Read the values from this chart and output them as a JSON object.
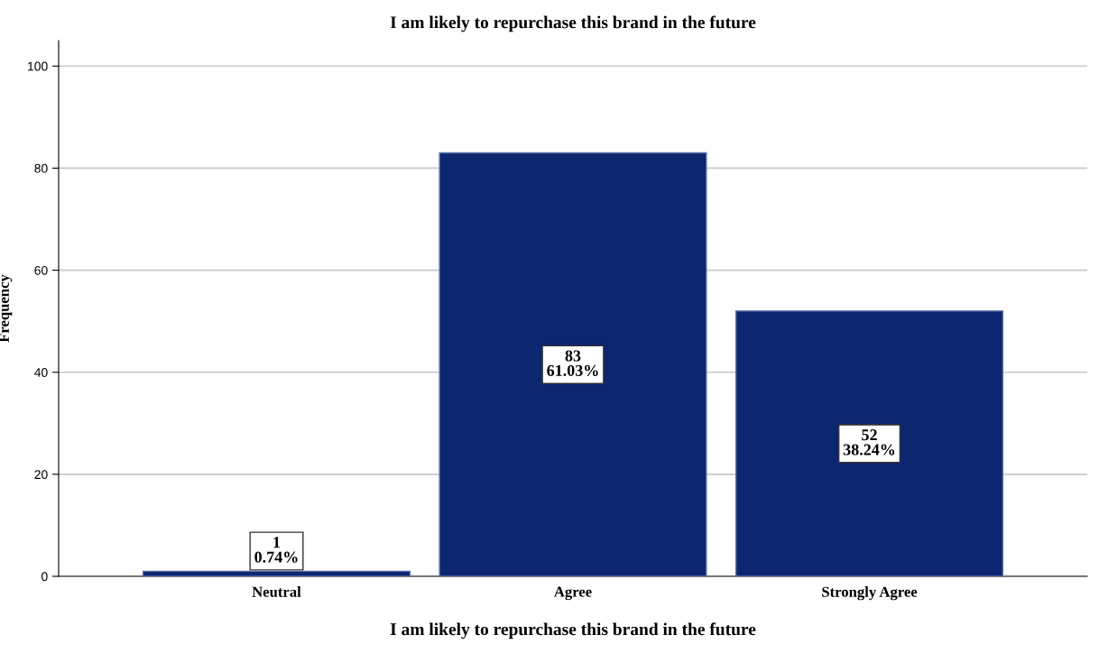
{
  "chart_data": {
    "type": "bar",
    "title": "I am likely to repurchase this brand in the future",
    "xlabel": "I am likely to repurchase this brand in the future",
    "ylabel": "Frequency",
    "categories": [
      "Neutral",
      "Agree",
      "Strongly Agree"
    ],
    "values": [
      1,
      83,
      52
    ],
    "color": "#0c2670",
    "value_labels": [
      "1\n0.74%",
      "83\n61.03%",
      "52\n38.24%"
    ],
    "ylim": [
      0,
      105
    ],
    "yticks": [
      0,
      20,
      40,
      60,
      80,
      100
    ],
    "grid": "y"
  }
}
